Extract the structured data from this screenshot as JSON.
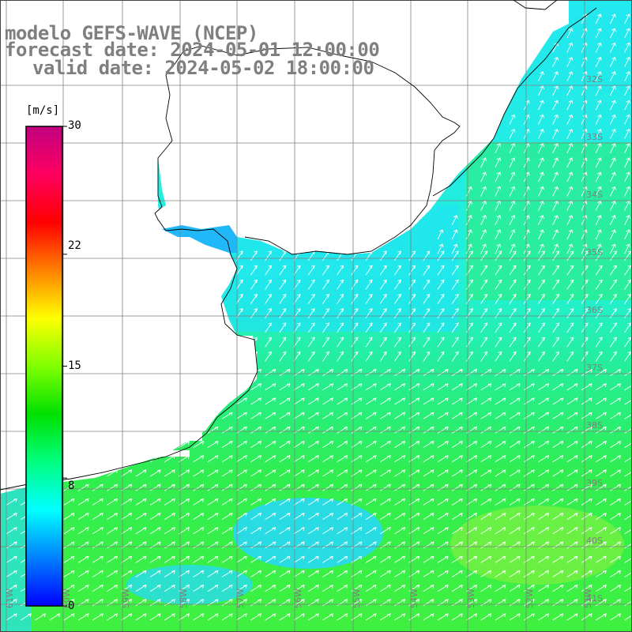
{
  "title": {
    "line1": "modelo GEFS-WAVE (NCEP)",
    "line2": "forecast date: 2024-05-01 12:00:00",
    "line3": "valid date: 2024-05-02 18:00:00"
  },
  "colorbar": {
    "unit": "[m/s]",
    "ticks": [
      "30",
      "22",
      "15",
      "8",
      "0"
    ],
    "tick_values": [
      30,
      22,
      15,
      8,
      0
    ],
    "range": [
      0,
      30
    ],
    "colors": [
      "#0000ff",
      "#0080ff",
      "#00ffff",
      "#00ff80",
      "#00e000",
      "#80ff00",
      "#ffff00",
      "#ff8000",
      "#ff0000",
      "#ff0060",
      "#c00080"
    ]
  },
  "map": {
    "lat_labels": [
      "32S",
      "33S",
      "34S",
      "35S",
      "36S",
      "37S",
      "38S",
      "39S",
      "40S",
      "41S"
    ],
    "lon_labels": [
      "61W",
      "60W",
      "59W",
      "58W",
      "57W",
      "56W",
      "55W",
      "54W",
      "53W",
      "52W",
      "51W"
    ],
    "wind_direction": "north-east",
    "colors": {
      "land": "#ffffff",
      "grid": "#808080",
      "coast": "#000000",
      "arrows": "#ffffff",
      "label": "#7f7f7f"
    }
  }
}
